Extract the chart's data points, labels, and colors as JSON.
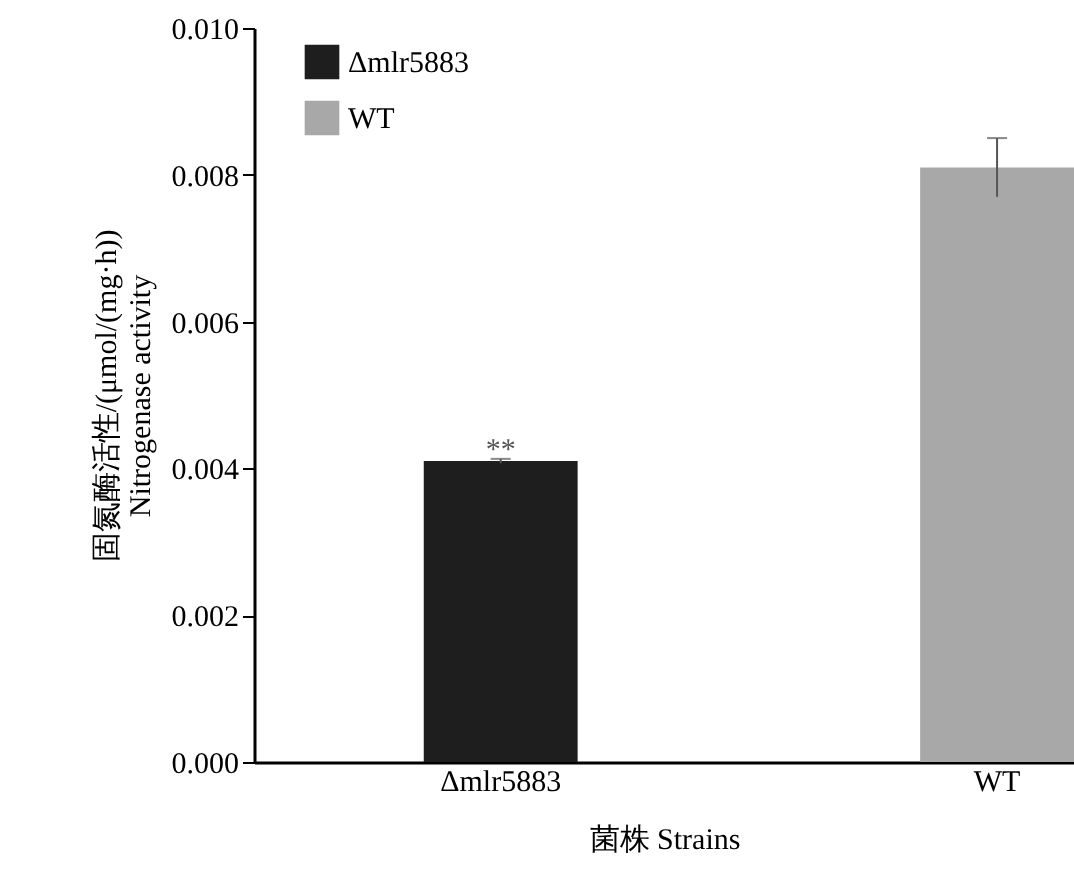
{
  "chart_data": {
    "type": "bar",
    "categories": [
      "Δmlr5883",
      "WT"
    ],
    "series": [
      {
        "name": "Δmlr5883",
        "color": "#1e1e1e",
        "values": [
          0.0041,
          null
        ],
        "errors": [
          3e-05,
          null
        ]
      },
      {
        "name": "WT",
        "color": "#a8a8a8",
        "values": [
          null,
          0.0081
        ],
        "errors": [
          null,
          0.0004
        ]
      }
    ],
    "xlabel": "菌株 Strains",
    "ylabel": "固氮酶活性/(μmol/(mg·h))\nNitrogenase activity",
    "ylim": [
      0,
      0.01
    ],
    "yticks": [
      {
        "value": 0,
        "label": "0.000"
      },
      {
        "value": 0.002,
        "label": "0.002"
      },
      {
        "value": 0.004,
        "label": "0.004"
      },
      {
        "value": 0.006,
        "label": "0.006"
      },
      {
        "value": 0.008,
        "label": "0.008"
      },
      {
        "value": 0.01,
        "label": "0.010"
      }
    ],
    "annotations": [
      {
        "text": "**",
        "x": "Δmlr5883",
        "y": 0.0041
      }
    ],
    "legend": "top left",
    "grid": false
  }
}
